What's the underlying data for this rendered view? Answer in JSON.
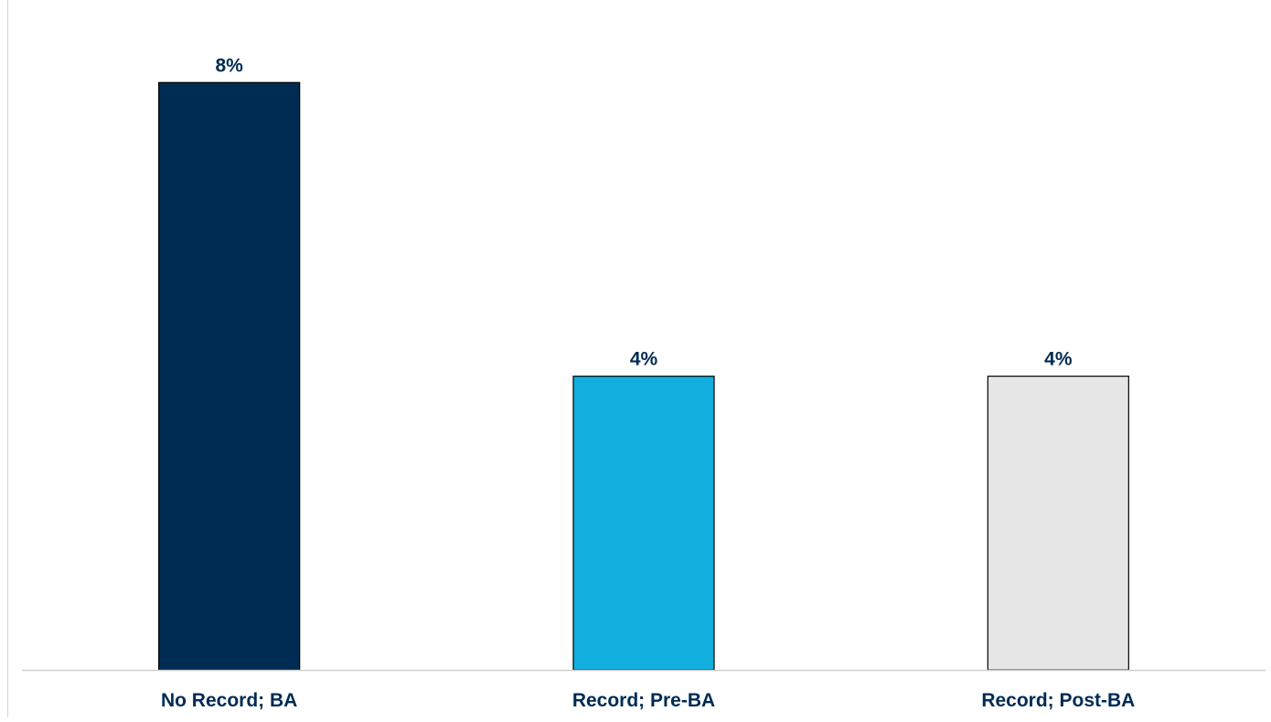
{
  "chart_data": {
    "type": "bar",
    "categories": [
      "No Record; BA",
      "Record; Pre-BA",
      "Record; Post-BA"
    ],
    "values": [
      8,
      4,
      4
    ],
    "data_labels": [
      "8%",
      "4%",
      "4%"
    ],
    "colors": [
      "#002B53",
      "#12AEDD",
      "#E6E6E6"
    ],
    "label_color": "#002B53",
    "title": "",
    "xlabel": "",
    "ylabel": "",
    "ylim": [
      0,
      8.9
    ],
    "grid": false,
    "legend": "none"
  }
}
